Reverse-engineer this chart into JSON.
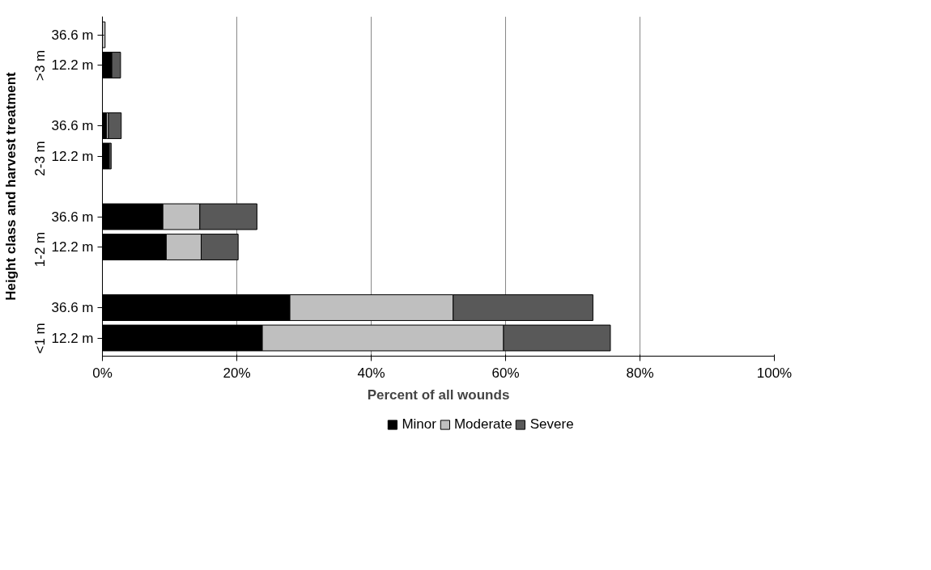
{
  "chart_data": {
    "type": "bar",
    "orientation": "horizontal",
    "stacked": true,
    "xlabel": "Percent of all wounds",
    "ylabel": "Height class and harvest treatment",
    "categories": [
      "36.6 m",
      "12.2 m",
      null,
      "36.6 m",
      "12.2 m",
      null,
      "36.6 m",
      "12.2 m",
      null,
      "36.6 m",
      "12.2 m"
    ],
    "annotations": [
      ">3 m",
      "2-3 m",
      "1-2 m",
      "<1 m"
    ],
    "series": [
      {
        "name": "Minor",
        "color": "#000000",
        "values": [
          0,
          1.4,
          null,
          0.6,
          1.0,
          null,
          9.0,
          9.5,
          null,
          27.9,
          23.8
        ]
      },
      {
        "name": "Moderate",
        "color": "#bfbfbf",
        "values": [
          0.4,
          0,
          null,
          0.3,
          0,
          null,
          5.5,
          5.2,
          null,
          24.3,
          35.9
        ]
      },
      {
        "name": "Severe",
        "color": "#595959",
        "values": [
          0,
          1.3,
          null,
          1.9,
          0.3,
          null,
          8.5,
          5.5,
          null,
          20.8,
          15.9
        ]
      }
    ],
    "xlim": [
      0,
      100
    ],
    "xticks": [
      {
        "value": 0,
        "label": "0%"
      },
      {
        "value": 20,
        "label": "20%"
      },
      {
        "value": 40,
        "label": "40%"
      },
      {
        "value": 60,
        "label": "60%"
      },
      {
        "value": 80,
        "label": "80%"
      },
      {
        "value": 100,
        "label": "100%"
      }
    ],
    "grid": "x",
    "legend": "bottom"
  }
}
